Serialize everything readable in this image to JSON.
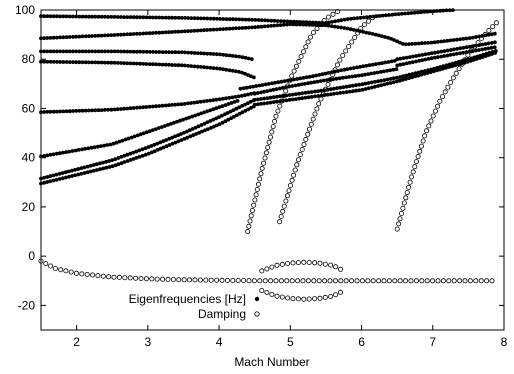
{
  "chart_data": {
    "type": "scatter",
    "title": "",
    "xlabel": "Mach Number",
    "ylabel": "",
    "xlim": [
      1.5,
      8.0
    ],
    "ylim": [
      -30,
      100
    ],
    "xticks": [
      2,
      3,
      4,
      5,
      6,
      7,
      8
    ],
    "yticks": [
      -20,
      0,
      20,
      40,
      60,
      80,
      100
    ],
    "xtick_labels": [
      "2",
      "3",
      "4",
      "5",
      "6",
      "7",
      "8"
    ],
    "ytick_labels": [
      "-20",
      "0",
      "20",
      "40",
      "60",
      "80",
      "100"
    ],
    "grid": false,
    "legend_position": "bottom-center",
    "series": [
      {
        "name": "Eigenfrequencies [Hz]",
        "marker": "filled-circle",
        "color": "#000000",
        "curves": [
          {
            "x": [
              1.5,
              2.5,
              3.5,
              4.5,
              5.0,
              5.5,
              5.8,
              6.5,
              7.0,
              7.3
            ],
            "y": [
              97.5,
              97.2,
              96.8,
              96.0,
              95.3,
              94.7,
              96.3,
              98.3,
              99.5,
              100.0
            ]
          },
          {
            "x": [
              1.5,
              2.5,
              3.5,
              4.5,
              5.0,
              5.5,
              5.8,
              6.2,
              6.4,
              6.6,
              7.0,
              7.5,
              7.9
            ],
            "y": [
              88.5,
              89.8,
              91.3,
              93.0,
              94.2,
              93.8,
              92.5,
              90.0,
              88.5,
              86.0,
              86.8,
              88.5,
              90.5
            ]
          },
          {
            "x": [
              1.5,
              2.5,
              3.5,
              4.0,
              4.3,
              4.5
            ],
            "y": [
              83.2,
              83.2,
              82.8,
              82.0,
              81.0,
              79.8
            ]
          },
          {
            "x": [
              1.5,
              2.5,
              3.5,
              4.0,
              4.3,
              4.5
            ],
            "y": [
              79.0,
              78.6,
              77.5,
              76.2,
              74.8,
              72.5
            ]
          },
          {
            "x": [
              1.5,
              2.5,
              3.5,
              4.0,
              4.3,
              4.5
            ],
            "y": [
              58.5,
              59.5,
              61.8,
              63.7,
              65.0,
              66.3
            ]
          },
          {
            "x": [
              1.5,
              2.5,
              3.0,
              3.5,
              4.0,
              4.3
            ],
            "y": [
              40.5,
              45.5,
              50.5,
              55.5,
              60.5,
              63.5
            ]
          },
          {
            "x": [
              1.5,
              2.5,
              3.0,
              3.5,
              4.0,
              4.5
            ],
            "y": [
              31.5,
              39.0,
              44.2,
              50.0,
              56.5,
              63.5
            ]
          },
          {
            "x": [
              1.5,
              2.5,
              3.0,
              3.5,
              4.0,
              4.5
            ],
            "y": [
              29.5,
              36.5,
              41.5,
              47.5,
              53.5,
              61.0
            ]
          },
          {
            "x": [
              4.5,
              5.0,
              5.5,
              6.0,
              6.3,
              6.5
            ],
            "y": [
              66.0,
              69.0,
              71.5,
              73.5,
              75.0,
              76.0
            ]
          },
          {
            "x": [
              4.3,
              4.8,
              5.3,
              5.8,
              6.3,
              6.5
            ],
            "y": [
              68.0,
              70.5,
              73.0,
              76.0,
              78.5,
              79.5
            ]
          },
          {
            "x": [
              4.5,
              5.0,
              5.5,
              6.0,
              6.5,
              7.0,
              7.5,
              7.9
            ],
            "y": [
              63.5,
              65.5,
              67.5,
              69.8,
              72.5,
              76.0,
              80.0,
              83.5
            ]
          },
          {
            "x": [
              4.5,
              5.0,
              5.5,
              6.0,
              6.5,
              7.0,
              7.5,
              7.9
            ],
            "y": [
              61.5,
              63.5,
              65.5,
              67.5,
              71.0,
              75.0,
              79.0,
              82.8
            ]
          },
          {
            "x": [
              6.5,
              7.0,
              7.5,
              7.9
            ],
            "y": [
              80.0,
              82.5,
              85.0,
              87.0
            ]
          },
          {
            "x": [
              6.5,
              7.0,
              7.5,
              7.9
            ],
            "y": [
              77.5,
              80.5,
              83.0,
              85.0
            ]
          }
        ]
      },
      {
        "name": "Damping",
        "marker": "open-circle",
        "color": "#000000",
        "curves": [
          {
            "x": [
              1.5,
              1.7,
              2.0,
              2.5,
              3.0,
              3.5,
              4.0,
              4.5,
              5.0,
              5.5,
              6.0,
              6.5,
              7.0,
              7.5,
              7.9
            ],
            "y": [
              -2.0,
              -5.0,
              -7.0,
              -8.5,
              -9.2,
              -9.6,
              -9.8,
              -10.0,
              -10.0,
              -10.0,
              -10.0,
              -10.0,
              -10.0,
              -10.0,
              -10.0
            ]
          },
          {
            "x": [
              4.6,
              4.8,
              5.0,
              5.2,
              5.4,
              5.6,
              5.75
            ],
            "y": [
              -6.0,
              -3.8,
              -2.8,
              -2.5,
              -2.8,
              -3.8,
              -6.0
            ]
          },
          {
            "x": [
              4.6,
              4.8,
              5.0,
              5.2,
              5.4,
              5.6,
              5.75
            ],
            "y": [
              -14.0,
              -16.2,
              -17.2,
              -17.5,
              -17.2,
              -16.2,
              -14.0
            ]
          },
          {
            "x": [
              4.4,
              4.6,
              4.8,
              5.0,
              5.3,
              5.5,
              5.7
            ],
            "y": [
              10.0,
              35.0,
              57.0,
              72.0,
              90.0,
              96.5,
              100.0
            ]
          },
          {
            "x": [
              4.85,
              5.1,
              5.4,
              5.7,
              6.0,
              6.2
            ],
            "y": [
              14.0,
              38.0,
              62.0,
              80.0,
              93.0,
              98.0
            ]
          },
          {
            "x": [
              6.5,
              6.7,
              6.9,
              7.1,
              7.3,
              7.5,
              7.7,
              7.9
            ],
            "y": [
              11.0,
              32.0,
              50.0,
              63.0,
              73.0,
              82.0,
              89.0,
              95.0
            ]
          }
        ]
      }
    ]
  }
}
